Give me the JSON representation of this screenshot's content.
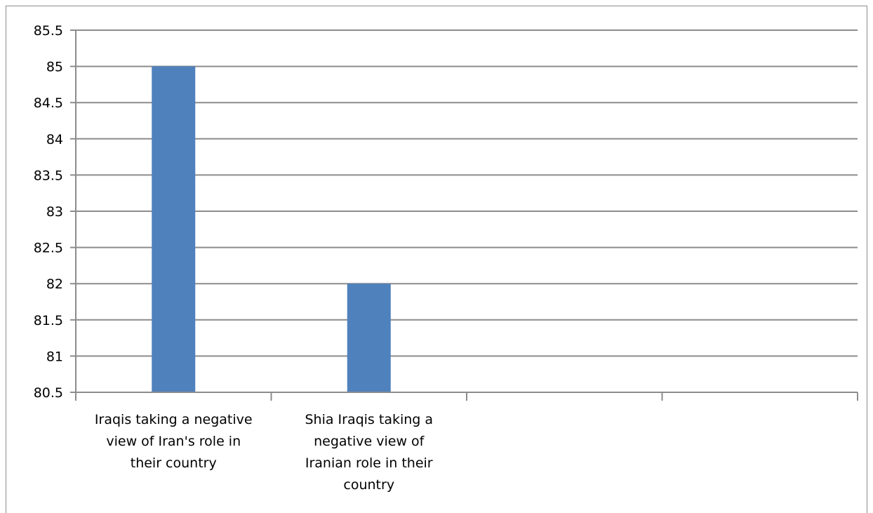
{
  "chart_data": {
    "type": "bar",
    "title": "",
    "xlabel": "",
    "ylabel": "",
    "categories": [
      "Iraqis taking a negative view of Iran's role in their country",
      "Shia Iraqis taking a negative view of Iranian role in their country",
      "",
      ""
    ],
    "category_label_lines": [
      [
        "Iraqis taking a negative",
        "view of Iran's role in",
        "their country"
      ],
      [
        "Shia Iraqis taking a",
        "negative view of",
        "Iranian role in their",
        "country"
      ],
      [],
      []
    ],
    "values": [
      85,
      82,
      null,
      null
    ],
    "ylim": [
      80.5,
      85.5
    ],
    "yticks": [
      "80.5",
      "81",
      "81.5",
      "82",
      "82.5",
      "83",
      "83.5",
      "84",
      "84.5",
      "85",
      "85.5"
    ],
    "bar_color": "#4f81bd",
    "grid": true,
    "legend": "none"
  }
}
